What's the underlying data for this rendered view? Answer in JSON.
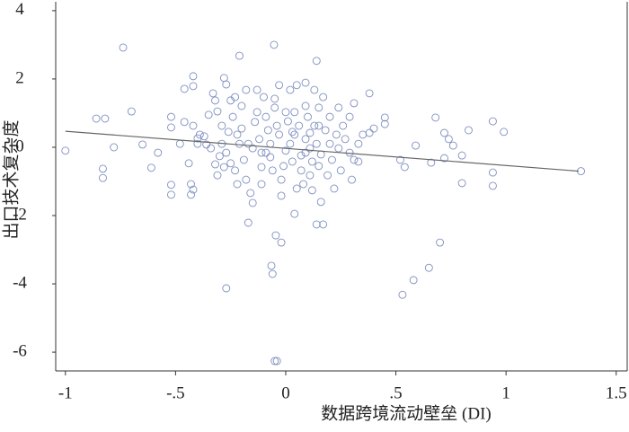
{
  "chart_data": {
    "type": "scatter",
    "x_label": "数据跨境流动壁垒 (DI)",
    "y_label": "出口技术复杂度",
    "color": "#7f8fc0",
    "x": [
      -0.738,
      -0.053,
      -0.21,
      0.14,
      -1.0,
      1.34,
      -0.27,
      -0.065,
      -0.06,
      -0.05,
      -0.04,
      0.7,
      0.53,
      0.58,
      0.65,
      -0.045,
      -0.02,
      0.04,
      -0.17,
      0.17,
      0.14,
      0.99,
      0.94,
      0.83,
      0.94,
      0.94,
      0.8,
      0.68,
      0.72,
      0.74,
      0.76,
      0.72,
      0.8,
      0.59,
      0.66,
      0.54,
      0.52,
      0.45,
      0.45,
      0.38,
      0.4,
      0.38,
      -0.86,
      -0.82,
      -0.83,
      -0.83,
      -0.78,
      -0.7,
      -0.65,
      -0.61,
      -0.58,
      -0.52,
      -0.52,
      -0.52,
      -0.52,
      -0.48,
      -0.46,
      -0.46,
      -0.44,
      -0.43,
      -0.43,
      -0.42,
      -0.42,
      -0.42,
      -0.42,
      -0.4,
      -0.4,
      -0.39,
      -0.37,
      -0.36,
      -0.33,
      -0.32,
      -0.31,
      -0.29,
      -0.29,
      -0.3,
      -0.32,
      -0.31,
      -0.28,
      -0.27,
      -0.25,
      -0.24,
      -0.26,
      -0.27,
      -0.25,
      -0.28,
      -0.23,
      -0.22,
      -0.21,
      -0.2,
      -0.2,
      -0.18,
      -0.19,
      -0.18,
      -0.16,
      -0.15,
      -0.15,
      -0.14,
      -0.13,
      -0.12,
      -0.11,
      -0.11,
      -0.1,
      -0.09,
      -0.08,
      -0.07,
      -0.07,
      -0.06,
      -0.05,
      -0.05,
      -0.04,
      -0.03,
      -0.02,
      -0.02,
      -0.01,
      0,
      0.01,
      0.02,
      0.02,
      0.03,
      0.04,
      0.04,
      0.05,
      0.06,
      0.07,
      0.07,
      0.08,
      0.09,
      0.09,
      0.09,
      0.1,
      0.11,
      0.11,
      0.12,
      0.12,
      0.13,
      0.13,
      0.14,
      0.15,
      0.15,
      0.16,
      0.17,
      0.18,
      0.19,
      0.2,
      0.2,
      0.21,
      0.22,
      0.23,
      0.24,
      0.24,
      0.25,
      0.26,
      0.27,
      0.29,
      0.29,
      0.3,
      0.31,
      0.33,
      0.33,
      0.35,
      0.31,
      -0.35,
      -0.34,
      -0.23,
      -0.17,
      -0.13,
      -0.09,
      -0.03,
      0.05,
      0.11,
      0.16,
      -0.11,
      -0.22,
      0.09,
      0.03,
      0.0,
      0.15
    ],
    "values": [
      2.92,
      3.0,
      2.68,
      2.53,
      -0.1,
      -0.7,
      -4.13,
      -3.47,
      -3.71,
      -6.26,
      -6.26,
      -2.79,
      -4.32,
      -3.89,
      -3.53,
      -2.58,
      -2.79,
      -1.95,
      -2.21,
      -2.26,
      -2.26,
      0.45,
      0.76,
      0.5,
      -0.74,
      -1.13,
      -1.05,
      0.87,
      0.42,
      0.24,
      0.05,
      -0.32,
      -0.24,
      0.05,
      -0.45,
      -0.58,
      -0.37,
      0.87,
      0.68,
      1.58,
      0.55,
      0.42,
      0.84,
      0.84,
      -0.63,
      -0.9,
      0,
      1.05,
      0.08,
      -0.6,
      -0.16,
      0.89,
      0.58,
      -1.1,
      -1.39,
      0.1,
      1.71,
      0.74,
      -0.47,
      -1.39,
      -1.08,
      -1.24,
      2.08,
      1.79,
      0.63,
      0.26,
      0.1,
      0.37,
      0.32,
      0.08,
      1.58,
      1.37,
      1.05,
      0.63,
      0.1,
      -0.26,
      -0.5,
      -0.82,
      2.03,
      1.84,
      1.37,
      0.89,
      0.45,
      -0.16,
      -0.47,
      -0.58,
      -0.68,
      0.37,
      0.1,
      0.55,
      1.21,
      1.68,
      -0.37,
      -0.95,
      -1.34,
      -1.63,
      -0.03,
      0.74,
      1.03,
      0.24,
      -0.58,
      -0.16,
      1.47,
      0.89,
      0.5,
      0.1,
      -0.29,
      -0.68,
      1.16,
      1.42,
      0.63,
      0.37,
      -0.95,
      -1.42,
      -0.55,
      -0.1,
      0.76,
      1.68,
      0.1,
      -0.42,
      0.37,
      1.03,
      1.82,
      0.63,
      -0.24,
      -0.68,
      -1.08,
      0.24,
      1.89,
      1.21,
      0.89,
      0.42,
      -0.03,
      -0.42,
      -1.26,
      0.63,
      1.68,
      0.1,
      1.16,
      -0.55,
      -0.21,
      1.47,
      0.5,
      -0.82,
      0.1,
      0.89,
      -0.37,
      -1.21,
      0.37,
      1.16,
      -0.03,
      -0.68,
      0.63,
      0.24,
      -0.16,
      0.89,
      -0.95,
      1.29,
      0.1,
      -0.42,
      0.37,
      -0.37,
      0.95,
      -0.03,
      1.47,
      0.1,
      1.68,
      -0.16,
      1.82,
      -1.21,
      -0.82,
      -1.6,
      -1.08,
      -1.08,
      -0.16,
      0.45,
      1.03,
      0.63
    ],
    "fit_line": {
      "color": "#666666",
      "x": [
        -1.0,
        1.33
      ],
      "values": [
        0.47,
        -0.7
      ]
    },
    "xlim": [
      -1.044,
      1.55
    ],
    "ylim": [
      -6.55,
      4.26
    ],
    "xticks": [
      -1,
      {
        "value": -0.5,
        "label": "-.5"
      },
      0,
      {
        "value": 0.5,
        "label": ".5"
      },
      1,
      1.5
    ],
    "yticks": [
      -6,
      -4,
      -2,
      0,
      2,
      4
    ]
  }
}
